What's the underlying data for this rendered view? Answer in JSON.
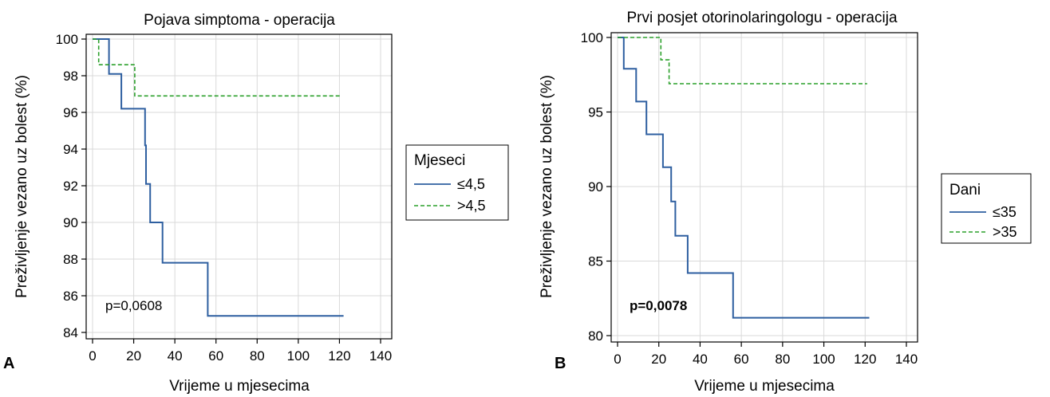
{
  "colors": {
    "series1": "#2e5fa0",
    "series2": "#2ca02c",
    "grid": "#d9d9d9"
  },
  "chart_data": [
    {
      "panel_label": "A",
      "type": "line",
      "step": true,
      "title": "Pojava simptoma - operacija",
      "xlabel": "Vrijeme u mjesecima",
      "ylabel": "Preživljenje vezano uz bolest (%)",
      "xlim": [
        0,
        140
      ],
      "ylim": [
        84,
        100
      ],
      "xticks": [
        0,
        20,
        40,
        60,
        80,
        100,
        120,
        140
      ],
      "yticks": [
        84,
        86,
        88,
        90,
        92,
        94,
        96,
        98,
        100
      ],
      "grid": true,
      "legend_title": "Mjeseci",
      "legend_position": "right",
      "annotation": "p=0,0608",
      "annotation_bold": false,
      "series": [
        {
          "name": "≤4,5",
          "style": "solid",
          "points": [
            [
              0,
              100
            ],
            [
              8,
              100
            ],
            [
              8,
              98.1
            ],
            [
              14,
              98.1
            ],
            [
              14,
              96.2
            ],
            [
              25.5,
              96.2
            ],
            [
              25.5,
              94.2
            ],
            [
              26,
              94.2
            ],
            [
              26,
              92.1
            ],
            [
              28,
              92.1
            ],
            [
              28,
              90
            ],
            [
              34,
              90
            ],
            [
              34,
              87.8
            ],
            [
              56,
              87.8
            ],
            [
              56,
              84.9
            ],
            [
              122,
              84.9
            ]
          ]
        },
        {
          "name": ">4,5",
          "style": "dashed",
          "points": [
            [
              0,
              100
            ],
            [
              3,
              100
            ],
            [
              3,
              98.6
            ],
            [
              20.5,
              98.6
            ],
            [
              20.5,
              96.9
            ],
            [
              121,
              96.9
            ]
          ]
        }
      ]
    },
    {
      "panel_label": "B",
      "type": "line",
      "step": true,
      "title": "Prvi posjet otorinolaringologu - operacija",
      "xlabel": "Vrijeme u mjesecima",
      "ylabel": "Preživljenje vezano uz bolest (%)",
      "xlim": [
        0,
        140
      ],
      "ylim": [
        80,
        100
      ],
      "xticks": [
        0,
        20,
        40,
        60,
        80,
        100,
        120,
        140
      ],
      "yticks": [
        80,
        85,
        90,
        95,
        100
      ],
      "grid": true,
      "legend_title": "Dani",
      "legend_position": "right",
      "annotation": "p=0,0078",
      "annotation_bold": true,
      "series": [
        {
          "name": "≤35",
          "style": "solid",
          "points": [
            [
              0,
              100
            ],
            [
              3,
              100
            ],
            [
              3,
              97.9
            ],
            [
              9,
              97.9
            ],
            [
              9,
              95.7
            ],
            [
              14,
              95.7
            ],
            [
              14,
              93.5
            ],
            [
              22,
              93.5
            ],
            [
              22,
              91.3
            ],
            [
              26,
              91.3
            ],
            [
              26,
              89
            ],
            [
              28,
              89
            ],
            [
              28,
              86.7
            ],
            [
              34,
              86.7
            ],
            [
              34,
              84.2
            ],
            [
              56,
              84.2
            ],
            [
              56,
              81.2
            ],
            [
              122,
              81.2
            ]
          ]
        },
        {
          "name": ">35",
          "style": "dashed",
          "points": [
            [
              0,
              100
            ],
            [
              21,
              100
            ],
            [
              21,
              98.5
            ],
            [
              25,
              98.5
            ],
            [
              25,
              96.9
            ],
            [
              121,
              96.9
            ]
          ]
        }
      ]
    }
  ]
}
